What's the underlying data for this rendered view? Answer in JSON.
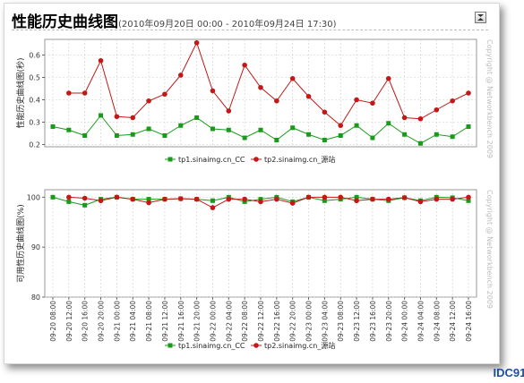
{
  "header": {
    "title": "性能历史曲线图",
    "subtitle": "(2010年09月20日 00:00 - 2010年09月24日 17:30)"
  },
  "colors": {
    "series1": "#1a9a1a",
    "series2": "#c21818",
    "grid": "#cccccc",
    "watermark": "#1f4ea1"
  },
  "watermark": "IDC91.",
  "chart_data": [
    {
      "type": "line",
      "ylabel": "性能历史曲线图(秒)",
      "xlabel": "",
      "ylim": [
        0.19,
        0.67
      ],
      "yticks": [
        "0.2",
        "0.3",
        "0.4",
        "0.5",
        "0.6"
      ],
      "ytick_values": [
        0.2,
        0.3,
        0.4,
        0.5,
        0.6
      ],
      "copyright": "Copyright @ Networkbench 2009",
      "legend_position": "bottom",
      "series": [
        {
          "name": "tp1.sinaimg.cn_CC",
          "marker": "square",
          "x": [
            "09-20 08:00",
            "09-20 12:00",
            "09-20 16:00",
            "09-20 20:00",
            "09-21 00:00",
            "09-21 04:00",
            "09-21 08:00",
            "09-21 12:00",
            "09-21 16:00",
            "09-21 20:00",
            "09-22 00:00",
            "09-22 04:00",
            "09-22 08:00",
            "09-22 12:00",
            "09-22 16:00",
            "09-22 20:00",
            "09-23 00:00",
            "09-23 04:00",
            "09-23 08:00",
            "09-23 12:00",
            "09-23 16:00",
            "09-23 20:00",
            "09-24 00:00",
            "09-24 04:00",
            "09-24 08:00",
            "09-24 12:00",
            "09-24 16:00"
          ],
          "values": [
            0.28,
            0.265,
            0.24,
            0.33,
            0.24,
            0.245,
            0.27,
            0.24,
            0.285,
            0.32,
            0.27,
            0.265,
            0.23,
            0.265,
            0.22,
            0.275,
            0.245,
            0.22,
            0.24,
            0.285,
            0.23,
            0.295,
            0.245,
            0.205,
            0.245,
            0.235,
            0.28
          ]
        },
        {
          "name": "tp2.sinaimg.cn_源站",
          "marker": "circle",
          "x": [
            "09-20 12:00",
            "09-20 16:00",
            "09-20 20:00",
            "09-21 00:00",
            "09-21 04:00",
            "09-21 08:00",
            "09-21 12:00",
            "09-21 16:00",
            "09-21 20:00",
            "09-22 00:00",
            "09-22 04:00",
            "09-22 08:00",
            "09-22 12:00",
            "09-22 16:00",
            "09-22 20:00",
            "09-23 00:00",
            "09-23 04:00",
            "09-23 08:00",
            "09-23 12:00",
            "09-23 16:00",
            "09-23 20:00",
            "09-24 00:00",
            "09-24 04:00",
            "09-24 08:00",
            "09-24 12:00",
            "09-24 16:00"
          ],
          "values": [
            0.43,
            0.43,
            0.575,
            0.325,
            0.32,
            0.395,
            0.425,
            0.51,
            0.655,
            0.44,
            0.35,
            0.555,
            0.455,
            0.395,
            0.495,
            0.415,
            0.345,
            0.285,
            0.4,
            0.385,
            0.495,
            0.32,
            0.315,
            0.355,
            0.395,
            0.43
          ]
        }
      ]
    },
    {
      "type": "line",
      "ylabel": "可用性历史曲线图(%)",
      "xlabel": "",
      "ylim": [
        80,
        101.5
      ],
      "yticks": [
        "80",
        "90",
        "100"
      ],
      "ytick_values": [
        80,
        90,
        100
      ],
      "copyright": "Copyright @ Networkbench 2009",
      "legend_position": "bottom",
      "xticks": [
        "09-20 08:00",
        "09-20 12:00",
        "09-20 16:00",
        "09-20 20:00",
        "09-21 00:00",
        "09-21 04:00",
        "09-21 08:00",
        "09-21 12:00",
        "09-21 16:00",
        "09-21 20:00",
        "09-22 00:00",
        "09-22 04:00",
        "09-22 08:00",
        "09-22 12:00",
        "09-22 16:00",
        "09-22 20:00",
        "09-23 00:00",
        "09-23 04:00",
        "09-23 08:00",
        "09-23 12:00",
        "09-23 16:00",
        "09-23 20:00",
        "09-24 00:00",
        "09-24 04:00",
        "09-24 08:00",
        "09-24 12:00",
        "09-24 16:00"
      ],
      "series": [
        {
          "name": "tp1.sinaimg.cn_CC",
          "marker": "square",
          "x": [
            "09-20 08:00",
            "09-20 12:00",
            "09-20 16:00",
            "09-20 20:00",
            "09-21 00:00",
            "09-21 04:00",
            "09-21 08:00",
            "09-21 12:00",
            "09-21 16:00",
            "09-21 20:00",
            "09-22 00:00",
            "09-22 04:00",
            "09-22 08:00",
            "09-22 12:00",
            "09-22 16:00",
            "09-22 20:00",
            "09-23 00:00",
            "09-23 04:00",
            "09-23 08:00",
            "09-23 12:00",
            "09-23 16:00",
            "09-23 20:00",
            "09-24 00:00",
            "09-24 04:00",
            "09-24 08:00",
            "09-24 12:00",
            "09-24 16:00"
          ],
          "values": [
            100,
            99.1,
            98.4,
            99.6,
            100,
            99.6,
            99.6,
            99.6,
            99.7,
            99.6,
            99.3,
            100,
            99.1,
            99.6,
            100,
            99.1,
            100,
            99.3,
            99.6,
            100,
            99.6,
            99.3,
            99.9,
            99.3,
            100,
            99.9,
            99.3
          ]
        },
        {
          "name": "tp2.sinaimg.cn_源站",
          "marker": "circle",
          "x": [
            "09-20 12:00",
            "09-20 16:00",
            "09-20 20:00",
            "09-21 00:00",
            "09-21 04:00",
            "09-21 08:00",
            "09-21 12:00",
            "09-21 16:00",
            "09-21 20:00",
            "09-22 00:00",
            "09-22 04:00",
            "09-22 08:00",
            "09-22 12:00",
            "09-22 16:00",
            "09-22 20:00",
            "09-23 00:00",
            "09-23 04:00",
            "09-23 08:00",
            "09-23 12:00",
            "09-23 16:00",
            "09-23 20:00",
            "09-24 00:00",
            "09-24 04:00",
            "09-24 08:00",
            "09-24 12:00",
            "09-24 16:00"
          ],
          "values": [
            100,
            99.8,
            99.3,
            100,
            99.6,
            98.9,
            99.6,
            99.7,
            99.6,
            97.9,
            99.6,
            99.6,
            99.1,
            99.6,
            98.8,
            100,
            100,
            100,
            99.3,
            99.6,
            99.6,
            99.9,
            99.1,
            99.6,
            99.6,
            100
          ]
        }
      ]
    }
  ]
}
